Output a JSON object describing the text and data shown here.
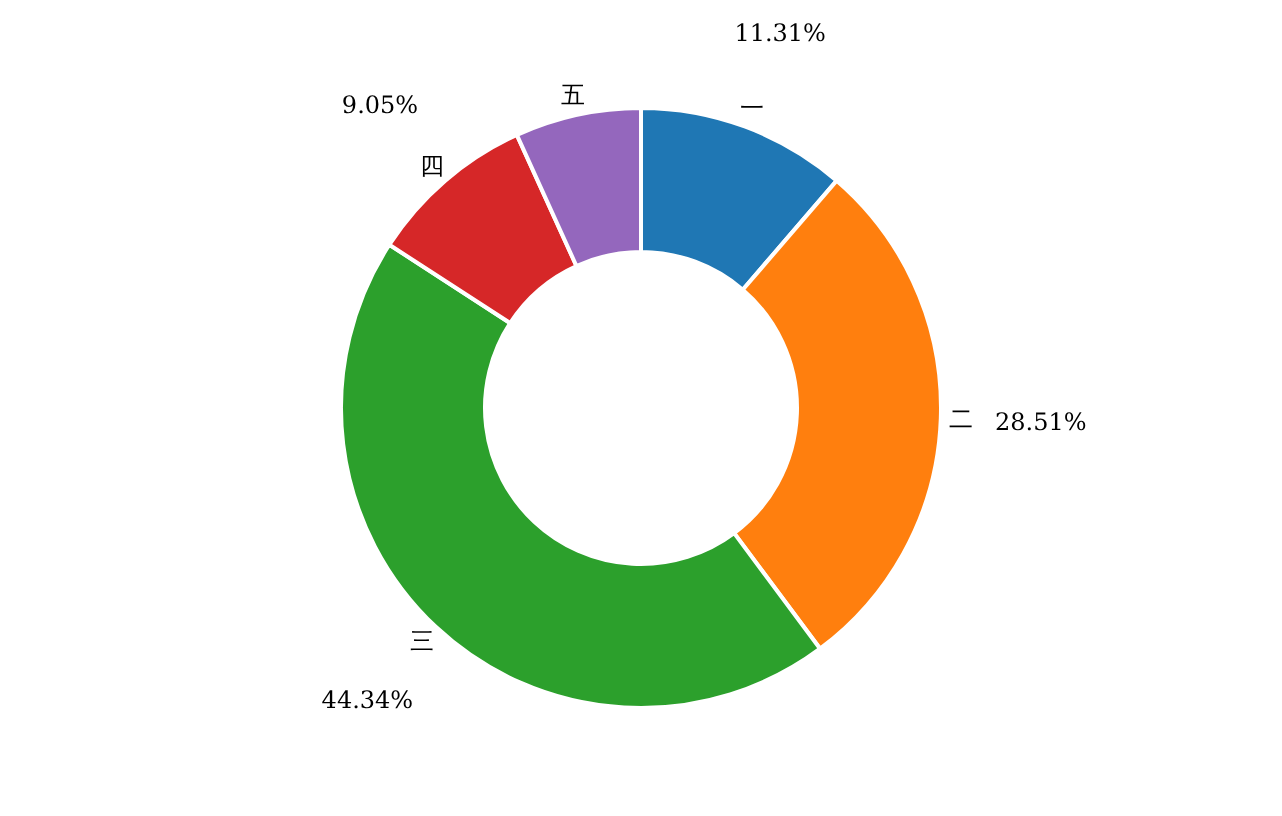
{
  "chart_data": {
    "type": "donut",
    "categories": [
      "一",
      "二",
      "三",
      "四",
      "五"
    ],
    "values": [
      11.31,
      28.51,
      44.34,
      9.05,
      6.79
    ],
    "colors": [
      "#1f77b4",
      "#ff7f0e",
      "#2ca02c",
      "#d62728",
      "#9467bd"
    ],
    "value_labels": [
      "11.31%",
      "28.51%",
      "44.34%",
      "9.05%",
      null
    ],
    "legend": false
  }
}
